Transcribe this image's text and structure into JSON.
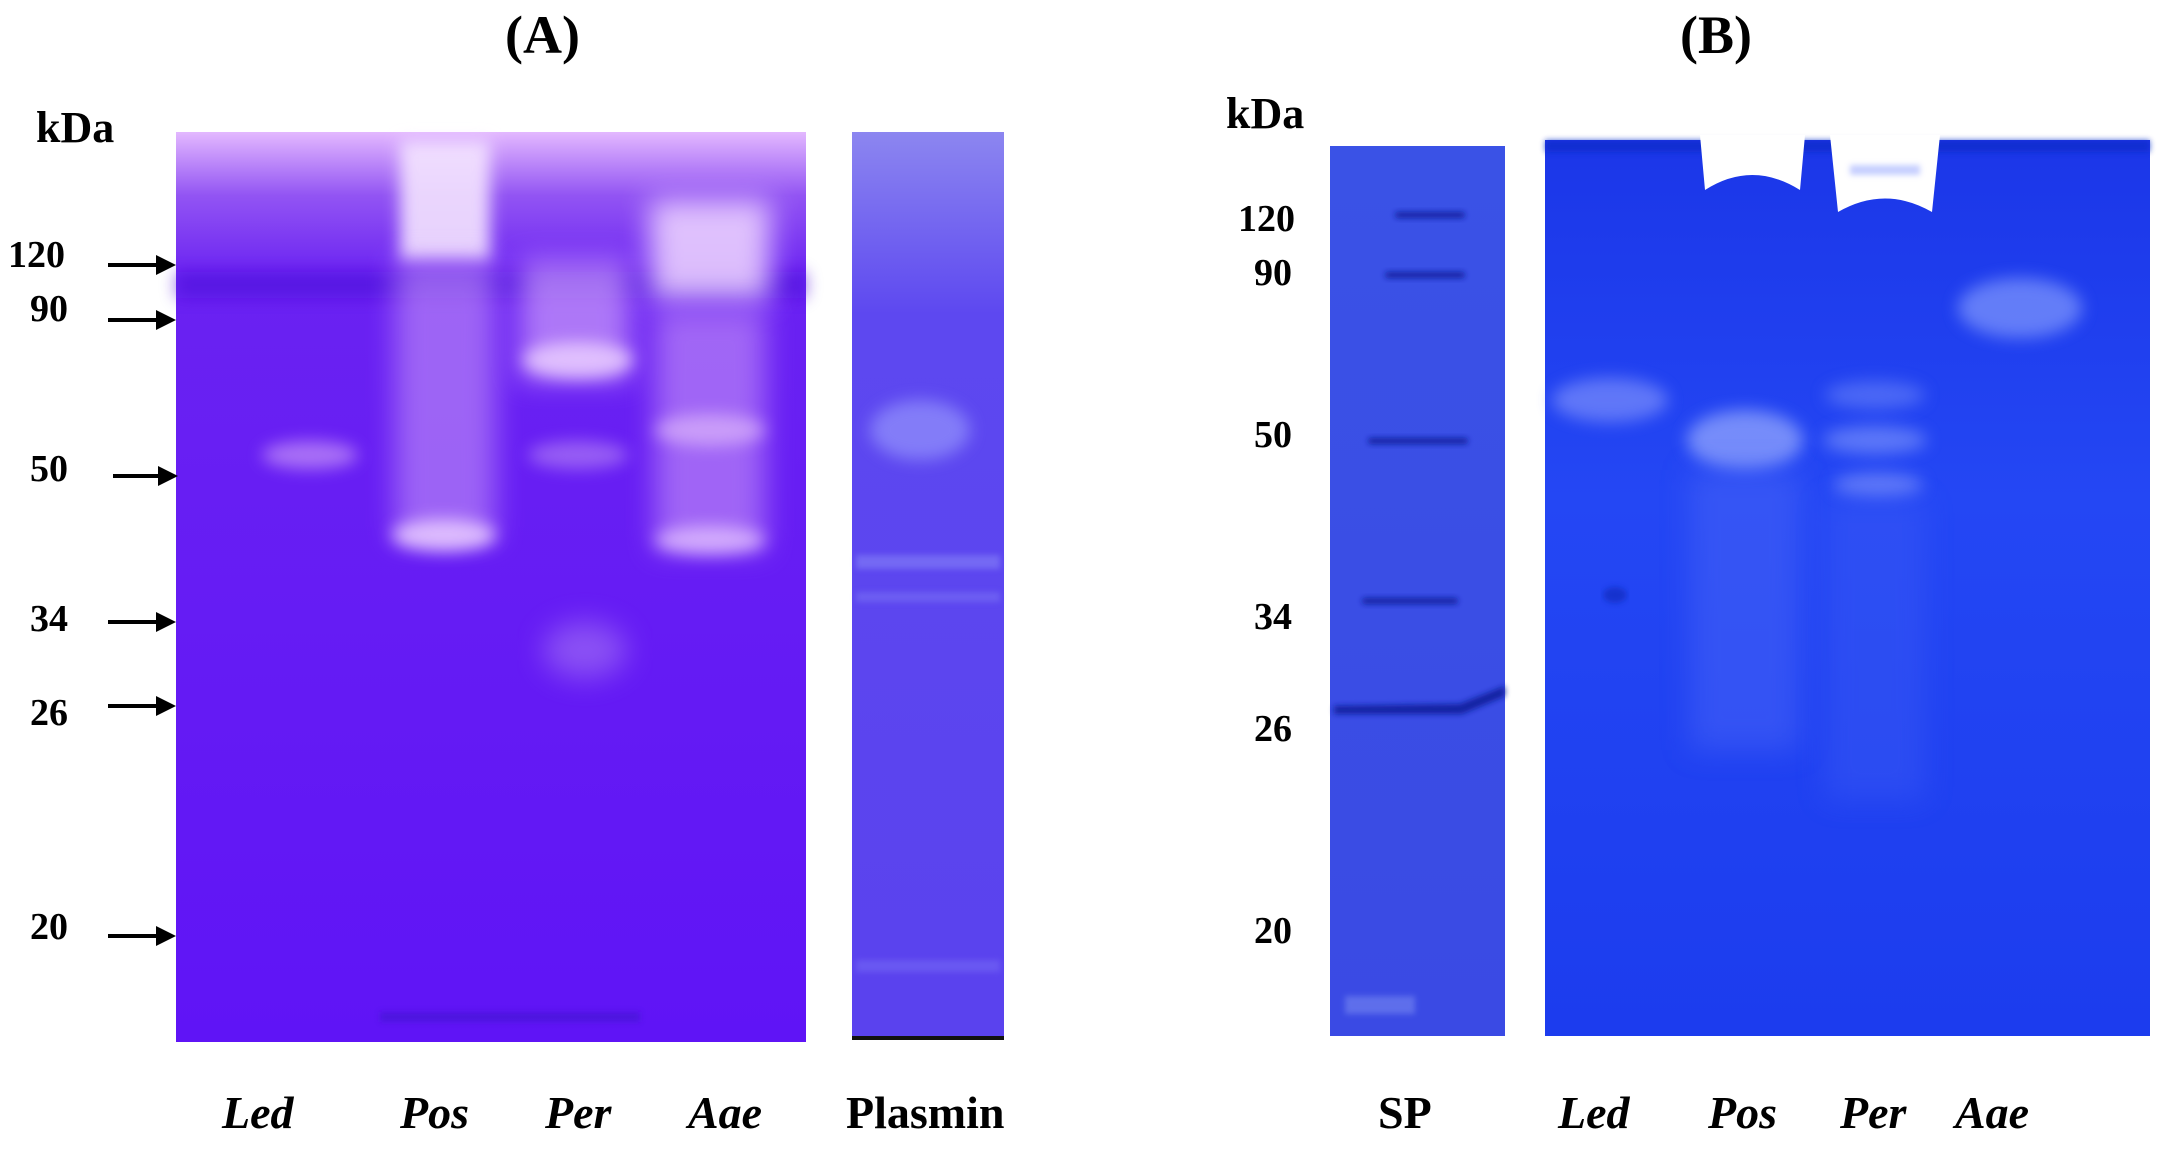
{
  "panel_a": {
    "title": "(A)",
    "unit_label": "kDa",
    "markers": [
      "120",
      "90",
      "50",
      "34",
      "26",
      "20"
    ],
    "lanes": [
      "Led",
      "Pos",
      "Per",
      "Aae"
    ],
    "extra_lane": "Plasmin"
  },
  "panel_b": {
    "title": "(B)",
    "unit_label": "kDa",
    "markers": [
      "120",
      "90",
      "50",
      "34",
      "26",
      "20"
    ],
    "ladder_lane": "SP",
    "lanes": [
      "Led",
      "Pos",
      "Per",
      "Aae"
    ]
  },
  "colors": {
    "gel_a": "#6a1ff5",
    "gel_a_plasmin": "#5b45f0",
    "gel_b": "#1e3cf0",
    "gel_b_marker": "#3a4ce8",
    "band_dark": "#0c1f9a",
    "band_clear": "#ffffff"
  }
}
